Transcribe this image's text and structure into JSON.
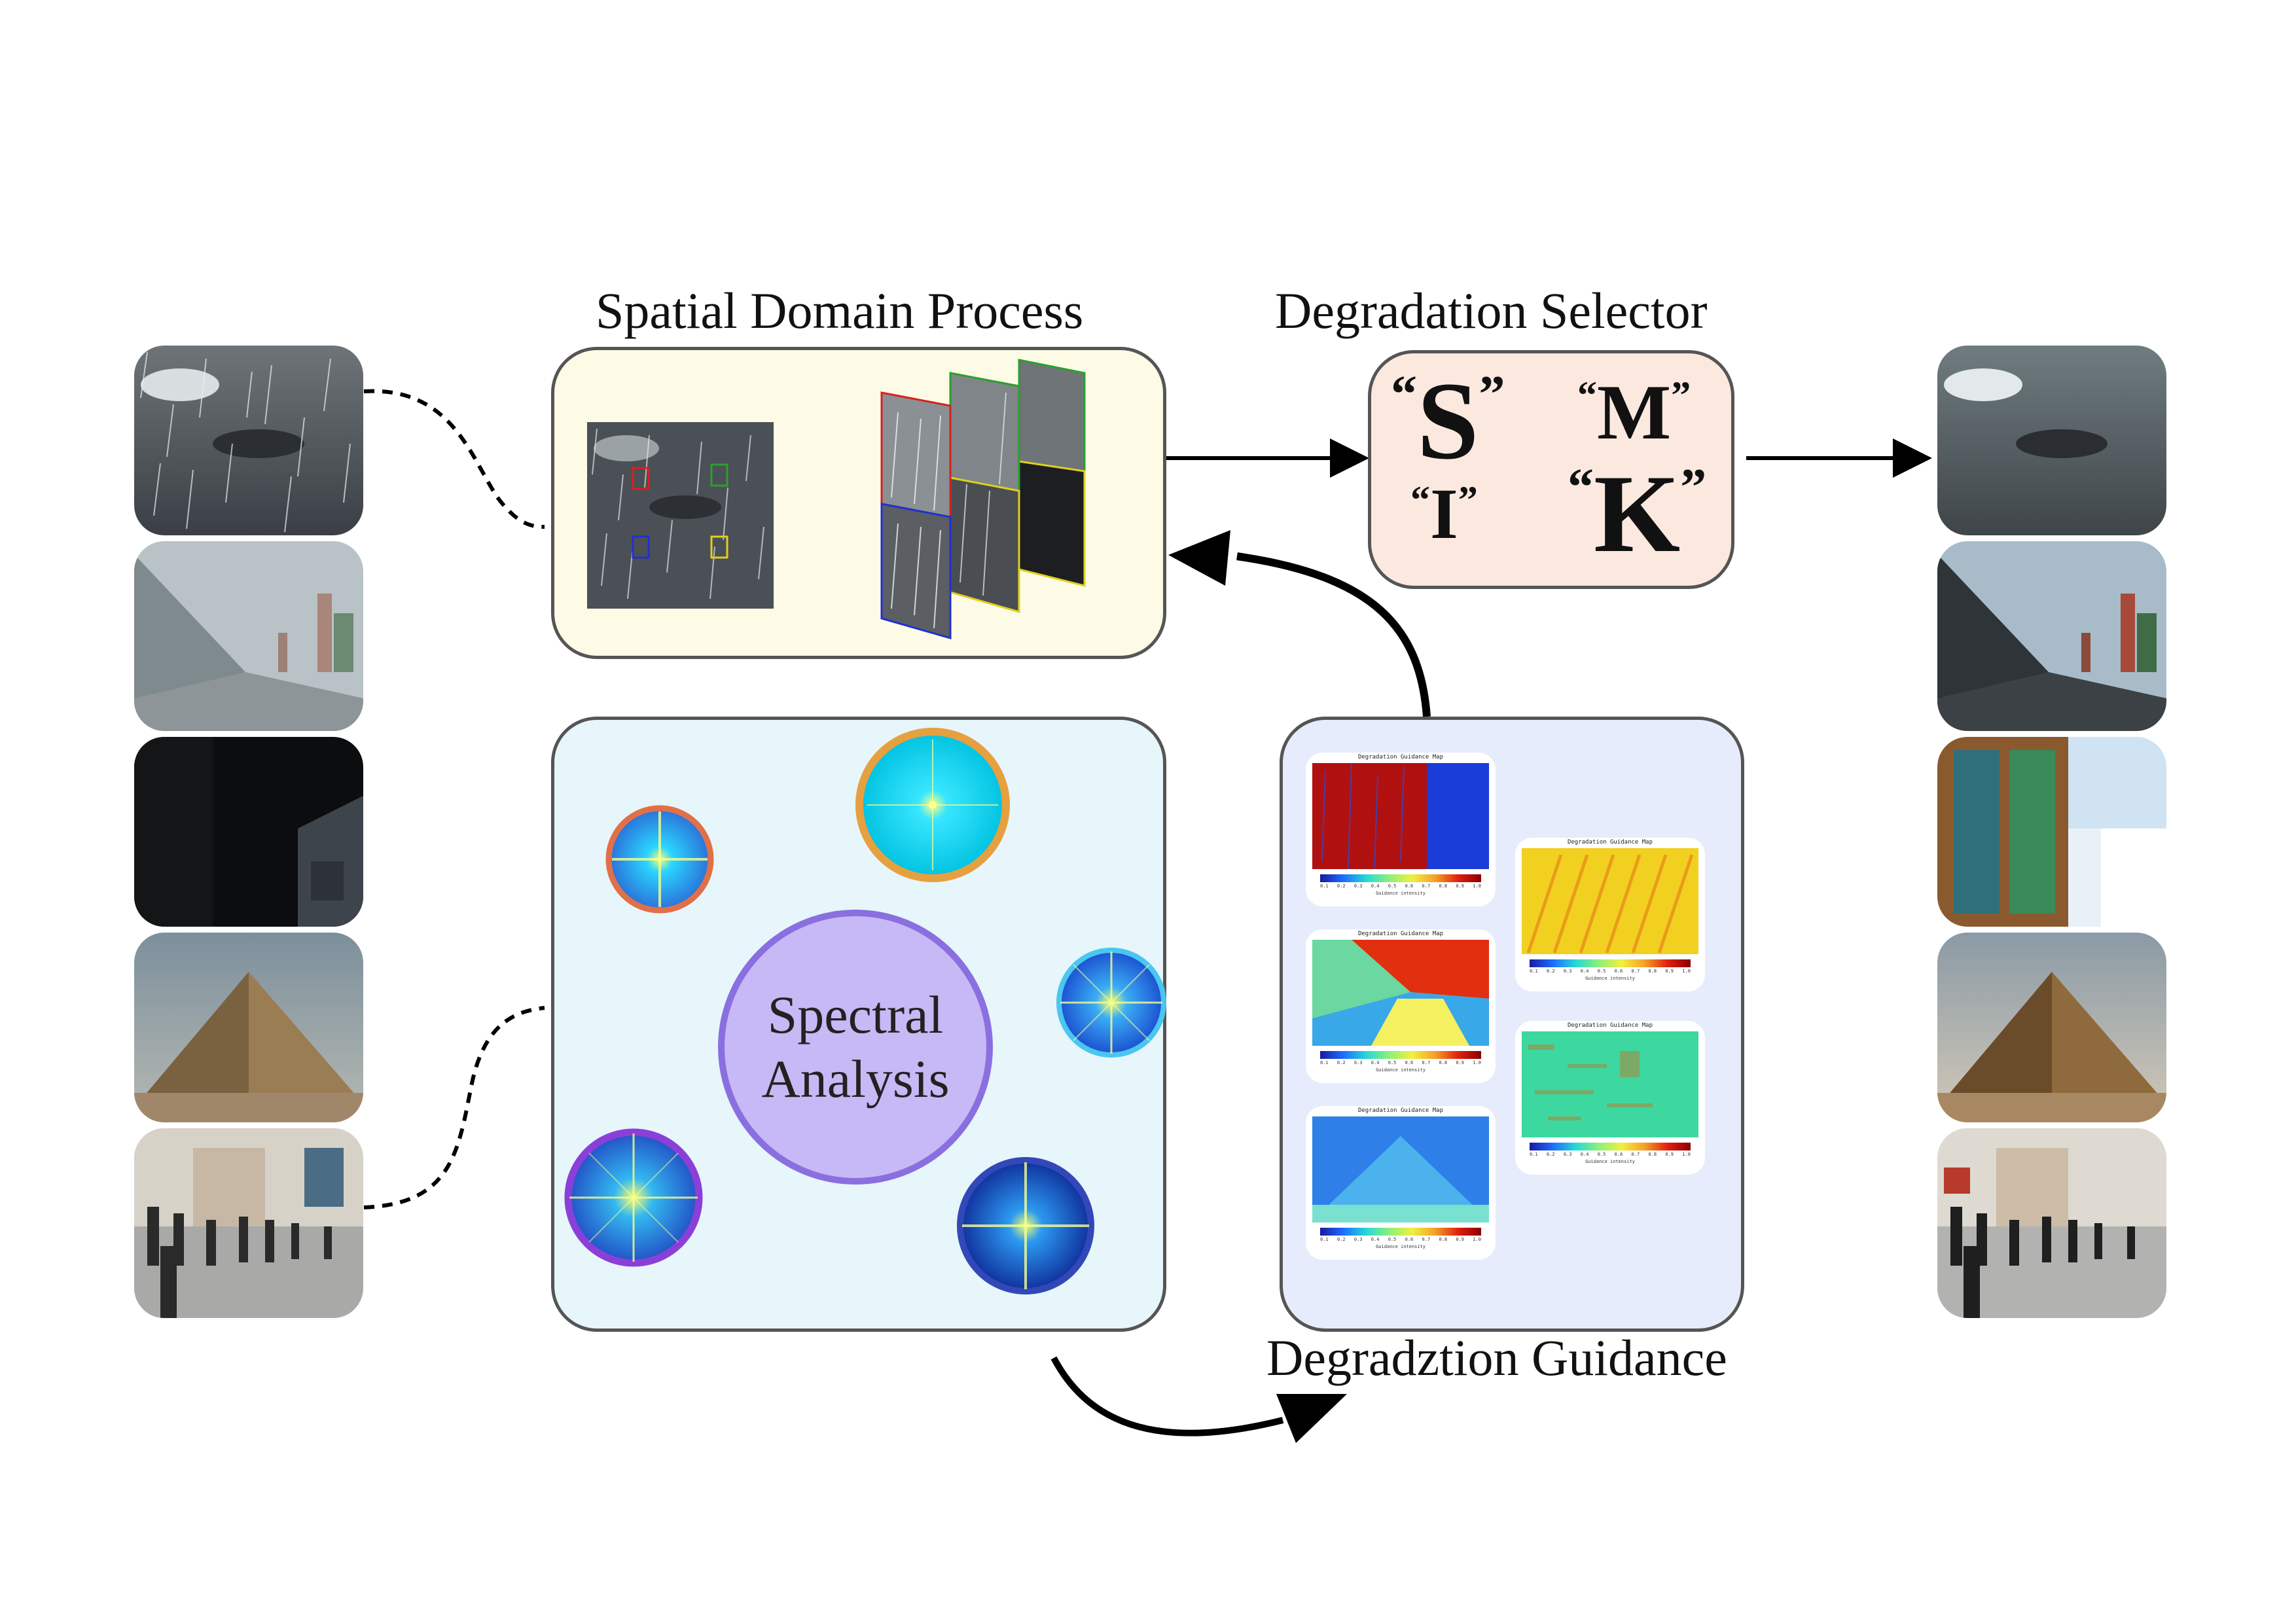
{
  "titles": {
    "spatial": "Spatial Domain Process",
    "selector": "Degradation Selector",
    "guidance": "Degradztion Guidance"
  },
  "spectral": {
    "line1": "Spectral",
    "line2": "Analysis"
  },
  "selector": {
    "q1": "“",
    "q2": "”",
    "s": "S",
    "m": "M",
    "i": "I",
    "k": "K"
  },
  "guidance_maps": {
    "title": "Degradation Guidance Map",
    "caption": "Guidance intensity",
    "ticks": [
      "0.1",
      "0.2",
      "0.3",
      "0.4",
      "0.5",
      "0.6",
      "0.7",
      "0.8",
      "0.9",
      "1.0"
    ]
  },
  "colors": {
    "spatial_panel": "#fdfbe6",
    "spectral_panel": "#e6f6fb",
    "guidance_panel": "#e6ecfb",
    "selector_panel": "#fbe9e0",
    "spectral_circle": "#c6b9f5",
    "spectral_border": "#8a6fe0"
  }
}
